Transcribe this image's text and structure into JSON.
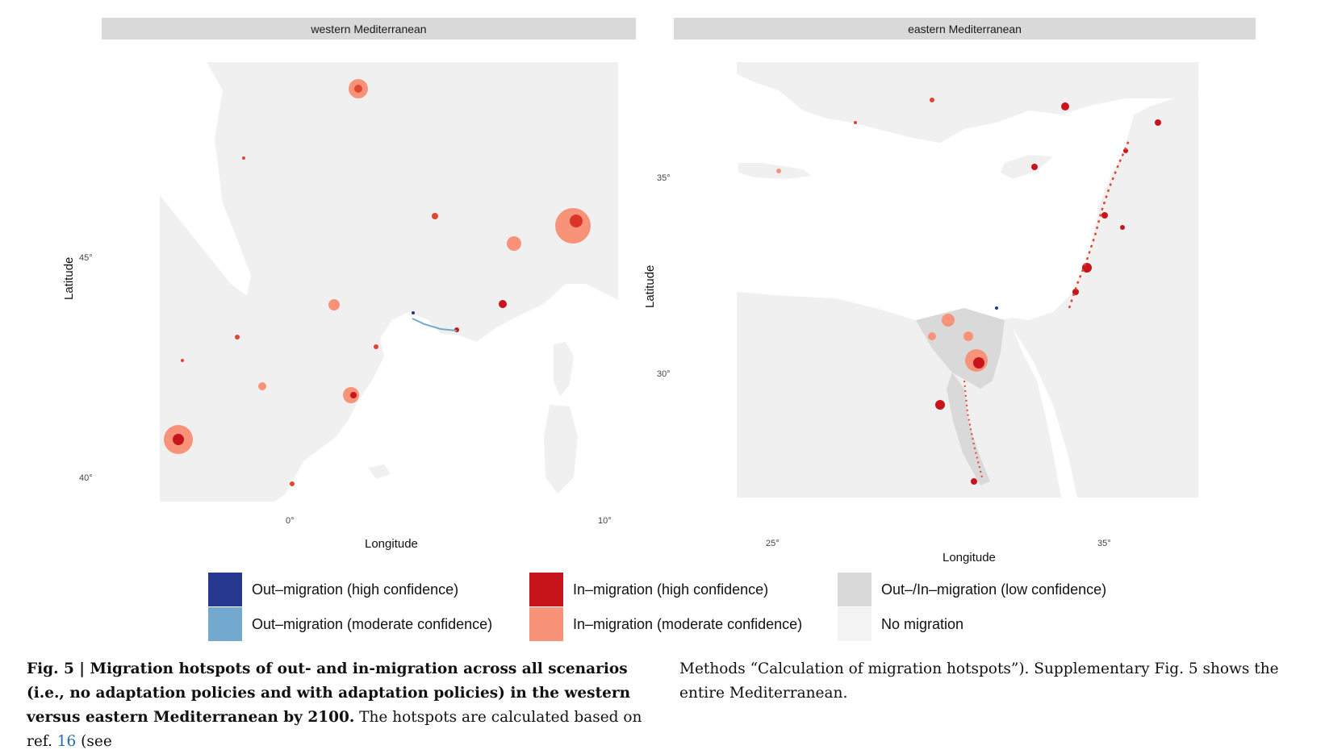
{
  "panels": [
    {
      "title": "western Mediterranean",
      "xlabel": "Longitude",
      "ylabel": "Latitude",
      "x_ticks": [
        "0°",
        "10°"
      ],
      "y_ticks": [
        "45°",
        "40°"
      ]
    },
    {
      "title": "eastern Mediterranean",
      "xlabel": "Longitude",
      "ylabel": "Latitude",
      "x_ticks": [
        "25°",
        "35°"
      ],
      "y_ticks": [
        "35°",
        "30°"
      ]
    }
  ],
  "legend": [
    {
      "label": "Out–migration (high confidence)",
      "color": "#25378f"
    },
    {
      "label": "Out–migration (moderate confidence)",
      "color": "#74a9cf"
    },
    {
      "label": "In–migration (high confidence)",
      "color": "#c8151b"
    },
    {
      "label": "In–migration (moderate confidence)",
      "color": "#f8937a"
    },
    {
      "label": "Out–/In–migration (low confidence)",
      "color": "#d9d9d9"
    },
    {
      "label": "No migration",
      "color": "#f3f3f3"
    }
  ],
  "caption": {
    "fig_label": "Fig. 5 | ",
    "bold_text": "Migration hotspots of out- and in-migration across all scenarios (i.e., no adaptation policies and with adaptation policies) in the western versus eastern Mediterranean by 2100.",
    "text_a": " The hotspots are calculated based on ref. ",
    "ref": "16",
    "text_b": " (see",
    "text_right": "Methods “Calculation of migration hotspots”). Supplementary Fig. 5 shows the entire Mediterranean."
  }
}
